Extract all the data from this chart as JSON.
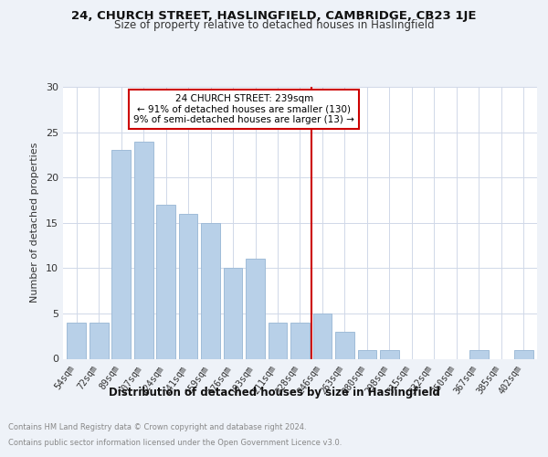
{
  "title1": "24, CHURCH STREET, HASLINGFIELD, CAMBRIDGE, CB23 1JE",
  "title2": "Size of property relative to detached houses in Haslingfield",
  "xlabel": "Distribution of detached houses by size in Haslingfield",
  "ylabel": "Number of detached properties",
  "categories": [
    "54sqm",
    "72sqm",
    "89sqm",
    "107sqm",
    "124sqm",
    "141sqm",
    "159sqm",
    "176sqm",
    "193sqm",
    "211sqm",
    "228sqm",
    "246sqm",
    "263sqm",
    "280sqm",
    "298sqm",
    "315sqm",
    "332sqm",
    "350sqm",
    "367sqm",
    "385sqm",
    "402sqm"
  ],
  "values": [
    4,
    4,
    23,
    24,
    17,
    16,
    15,
    10,
    11,
    4,
    4,
    5,
    3,
    1,
    1,
    0,
    0,
    0,
    1,
    0,
    1
  ],
  "bar_color": "#b8d0e8",
  "bar_edge_color": "#a0bcd8",
  "vline_x_index": 10.5,
  "vline_color": "#cc0000",
  "annotation_text": "24 CHURCH STREET: 239sqm\n← 91% of detached houses are smaller (130)\n9% of semi-detached houses are larger (13) →",
  "annotation_box_color": "#cc0000",
  "ylim": [
    0,
    30
  ],
  "yticks": [
    0,
    5,
    10,
    15,
    20,
    25,
    30
  ],
  "footer1": "Contains HM Land Registry data © Crown copyright and database right 2024.",
  "footer2": "Contains public sector information licensed under the Open Government Licence v3.0.",
  "bg_color": "#eef2f8",
  "plot_bg_color": "#ffffff",
  "grid_color": "#d0d8e8"
}
